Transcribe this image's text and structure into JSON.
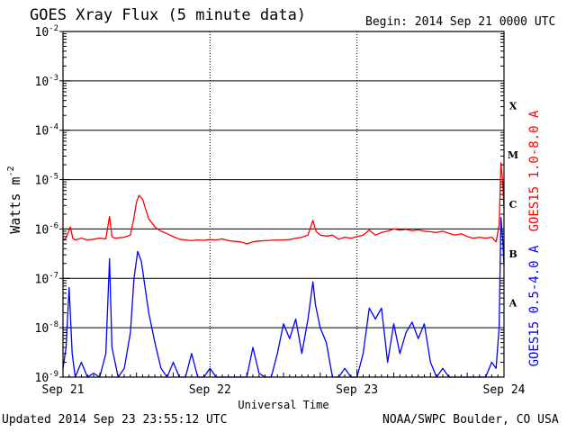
{
  "header": {
    "title": "GOES Xray Flux (5 minute data)",
    "begin": "Begin:  2014 Sep 21 0000 UTC"
  },
  "footer": {
    "updated": "Updated 2014 Sep 23 23:55:12 UTC",
    "credit": "NOAA/SWPC Boulder, CO USA"
  },
  "chart_data": {
    "type": "line",
    "title": "GOES Xray Flux (5 minute data)",
    "xlabel": "Universal Time",
    "ylabel_base": "Watts m",
    "ylabel_exp": "-2",
    "y_scale": "log",
    "ylim": [
      1e-09,
      0.01
    ],
    "y_ticks": [
      {
        "base": "10",
        "exp": "-9",
        "value": 1e-09
      },
      {
        "base": "10",
        "exp": "-8",
        "value": 1e-08
      },
      {
        "base": "10",
        "exp": "-7",
        "value": 1e-07
      },
      {
        "base": "10",
        "exp": "-6",
        "value": 1e-06
      },
      {
        "base": "10",
        "exp": "-5",
        "value": 1e-05
      },
      {
        "base": "10",
        "exp": "-4",
        "value": 0.0001
      },
      {
        "base": "10",
        "exp": "-3",
        "value": 0.001
      },
      {
        "base": "10",
        "exp": "-2",
        "value": 0.01
      }
    ],
    "x_ticks": [
      "Sep 21",
      "Sep 22",
      "Sep 23",
      "Sep 24"
    ],
    "xlim_hours": [
      0,
      72
    ],
    "grid": true,
    "class_labels": [
      {
        "label": "A",
        "value": 1e-08
      },
      {
        "label": "B",
        "value": 1e-07
      },
      {
        "label": "C",
        "value": 1e-06
      },
      {
        "label": "M",
        "value": 1e-05
      },
      {
        "label": "X",
        "value": 0.0001
      }
    ],
    "series": [
      {
        "name": "GOES15 1.0-8.0 A",
        "color": "#ff0000",
        "points": [
          [
            0,
            6e-07
          ],
          [
            0.5,
            6.5e-07
          ],
          [
            1.2,
            1.1e-06
          ],
          [
            1.6,
            6.5e-07
          ],
          [
            2,
            6e-07
          ],
          [
            3,
            6.5e-07
          ],
          [
            4,
            6e-07
          ],
          [
            5,
            6.2e-07
          ],
          [
            6,
            6.5e-07
          ],
          [
            7,
            6.3e-07
          ],
          [
            7.6,
            1.8e-06
          ],
          [
            8,
            7e-07
          ],
          [
            8.5,
            6.5e-07
          ],
          [
            9,
            6.6e-07
          ],
          [
            10,
            6.8e-07
          ],
          [
            11,
            7.5e-07
          ],
          [
            11.5,
            1.5e-06
          ],
          [
            12,
            3.5e-06
          ],
          [
            12.4,
            4.8e-06
          ],
          [
            13,
            4e-06
          ],
          [
            13.5,
            2.5e-06
          ],
          [
            14,
            1.6e-06
          ],
          [
            15,
            1.1e-06
          ],
          [
            16,
            9e-07
          ],
          [
            17,
            8e-07
          ],
          [
            18,
            7e-07
          ],
          [
            19,
            6.2e-07
          ],
          [
            20,
            6e-07
          ],
          [
            21,
            5.8e-07
          ],
          [
            22,
            6e-07
          ],
          [
            23,
            5.9e-07
          ],
          [
            24,
            6.1e-07
          ],
          [
            25,
            6e-07
          ],
          [
            26,
            6.3e-07
          ],
          [
            27,
            5.8e-07
          ],
          [
            28,
            5.6e-07
          ],
          [
            29,
            5.5e-07
          ],
          [
            30,
            5e-07
          ],
          [
            31,
            5.5e-07
          ],
          [
            32,
            5.7e-07
          ],
          [
            33,
            5.8e-07
          ],
          [
            34,
            5.9e-07
          ],
          [
            35,
            6e-07
          ],
          [
            36,
            6e-07
          ],
          [
            37,
            6.1e-07
          ],
          [
            38,
            6.5e-07
          ],
          [
            39,
            6.8e-07
          ],
          [
            40,
            7.5e-07
          ],
          [
            40.8,
            1.5e-06
          ],
          [
            41.3,
            9e-07
          ],
          [
            42,
            7.5e-07
          ],
          [
            43,
            7.2e-07
          ],
          [
            44,
            7.5e-07
          ],
          [
            45,
            6.2e-07
          ],
          [
            46,
            6.8e-07
          ],
          [
            47,
            6.5e-07
          ],
          [
            48,
            7e-07
          ],
          [
            49,
            7.5e-07
          ],
          [
            50,
            9.5e-07
          ],
          [
            51,
            7.5e-07
          ],
          [
            52,
            8.5e-07
          ],
          [
            53,
            9e-07
          ],
          [
            54,
            1e-06
          ],
          [
            55,
            9.5e-07
          ],
          [
            56,
            9.8e-07
          ],
          [
            57,
            9.2e-07
          ],
          [
            58,
            9.6e-07
          ],
          [
            59,
            9e-07
          ],
          [
            60,
            8.8e-07
          ],
          [
            61,
            8.5e-07
          ],
          [
            62,
            9e-07
          ],
          [
            63,
            8.2e-07
          ],
          [
            64,
            7.5e-07
          ],
          [
            65,
            8e-07
          ],
          [
            66,
            7e-07
          ],
          [
            67,
            6.5e-07
          ],
          [
            68,
            6.8e-07
          ],
          [
            69,
            6.5e-07
          ],
          [
            70,
            6.8e-07
          ],
          [
            70.7,
            5.5e-07
          ],
          [
            71.2,
            1.2e-06
          ],
          [
            71.5,
            2.2e-05
          ],
          [
            71.8,
            9e-06
          ],
          [
            72,
            2.5e-06
          ]
        ]
      },
      {
        "name": "GOES15 0.5-4.0 A",
        "color": "#0000ff",
        "points": [
          [
            0,
            1.5e-09
          ],
          [
            0.5,
            4e-09
          ],
          [
            1,
            6.5e-08
          ],
          [
            1.5,
            3e-09
          ],
          [
            2,
            1e-09
          ],
          [
            3,
            2e-09
          ],
          [
            4,
            1e-09
          ],
          [
            5,
            1.2e-09
          ],
          [
            6,
            1e-09
          ],
          [
            7,
            3e-09
          ],
          [
            7.6,
            2.5e-07
          ],
          [
            8,
            4e-09
          ],
          [
            9,
            1e-09
          ],
          [
            10,
            1.5e-09
          ],
          [
            11,
            8e-09
          ],
          [
            11.6,
            1e-07
          ],
          [
            12.2,
            3.5e-07
          ],
          [
            12.8,
            2.2e-07
          ],
          [
            13.3,
            8e-08
          ],
          [
            14,
            2e-08
          ],
          [
            15,
            5e-09
          ],
          [
            16,
            1.5e-09
          ],
          [
            17,
            1e-09
          ],
          [
            18,
            2e-09
          ],
          [
            19,
            1e-09
          ],
          [
            20,
            1e-09
          ],
          [
            21,
            3e-09
          ],
          [
            22,
            1e-09
          ],
          [
            23,
            1e-09
          ],
          [
            24,
            1.5e-09
          ],
          [
            25,
            1e-09
          ],
          [
            26,
            1e-09
          ],
          [
            27,
            1e-09
          ],
          [
            28,
            1e-09
          ],
          [
            29,
            1e-09
          ],
          [
            30,
            1e-09
          ],
          [
            31,
            4e-09
          ],
          [
            32,
            1.2e-09
          ],
          [
            33,
            1e-09
          ],
          [
            34,
            1e-09
          ],
          [
            35,
            3e-09
          ],
          [
            36,
            1.2e-08
          ],
          [
            37,
            6e-09
          ],
          [
            38,
            1.5e-08
          ],
          [
            39,
            3e-09
          ],
          [
            40,
            1.5e-08
          ],
          [
            40.8,
            8.5e-08
          ],
          [
            41.2,
            3e-08
          ],
          [
            42,
            1e-08
          ],
          [
            43,
            5e-09
          ],
          [
            44,
            1e-09
          ],
          [
            45,
            1e-09
          ],
          [
            46,
            1.5e-09
          ],
          [
            47,
            1e-09
          ],
          [
            48,
            1e-09
          ],
          [
            49,
            3e-09
          ],
          [
            50,
            2.5e-08
          ],
          [
            51,
            1.5e-08
          ],
          [
            52,
            2.5e-08
          ],
          [
            53,
            2e-09
          ],
          [
            54,
            1.2e-08
          ],
          [
            55,
            3e-09
          ],
          [
            56,
            8e-09
          ],
          [
            57,
            1.3e-08
          ],
          [
            58,
            6e-09
          ],
          [
            59,
            1.2e-08
          ],
          [
            60,
            2e-09
          ],
          [
            61,
            1e-09
          ],
          [
            62,
            1.5e-09
          ],
          [
            63,
            1e-09
          ],
          [
            64,
            1e-09
          ],
          [
            65,
            1e-09
          ],
          [
            66,
            1e-09
          ],
          [
            67,
            1e-09
          ],
          [
            68,
            1e-09
          ],
          [
            69,
            1e-09
          ],
          [
            70,
            2e-09
          ],
          [
            70.7,
            1.5e-09
          ],
          [
            71.2,
            1e-08
          ],
          [
            71.5,
            1.7e-06
          ],
          [
            71.8,
            6e-07
          ],
          [
            72,
            1.8e-07
          ]
        ]
      }
    ]
  }
}
